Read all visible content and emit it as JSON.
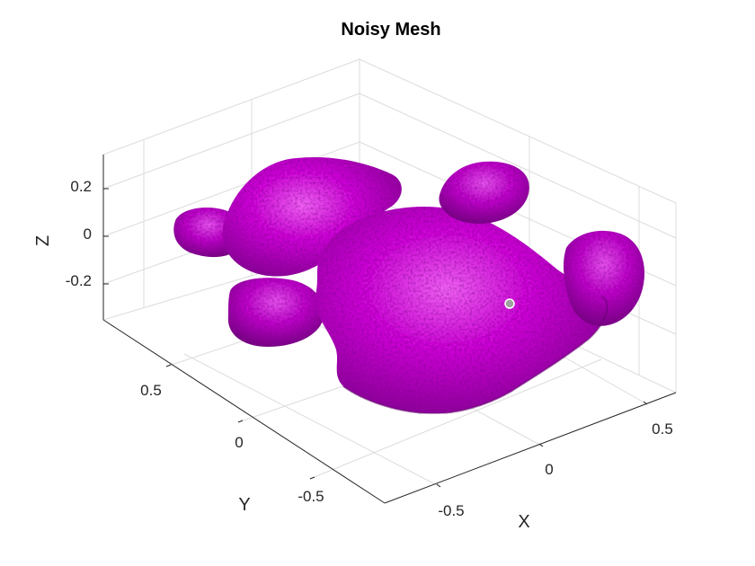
{
  "chart_data": {
    "type": "surface-mesh",
    "title": "Noisy Mesh",
    "xlabel": "X",
    "ylabel": "Y",
    "zlabel": "Z",
    "x_ticks": [
      "-0.5",
      "0",
      "0.5"
    ],
    "y_ticks": [
      "0.5",
      "0",
      "-0.5"
    ],
    "z_ticks": [
      "0.2",
      "0",
      "-0.2"
    ],
    "grid": true,
    "face_color": "#d000d8",
    "edge_color": "none",
    "marker_color": "#a0a0a0"
  }
}
